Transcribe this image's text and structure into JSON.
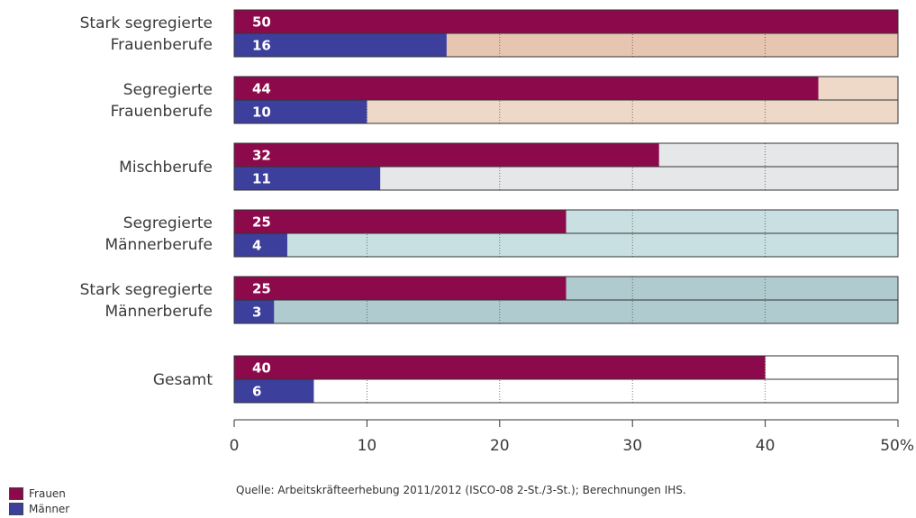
{
  "chart_data": {
    "type": "bar",
    "orientation": "horizontal",
    "categories": [
      [
        "Stark segregierte",
        "Frauenberufe"
      ],
      [
        "Segregierte",
        "Frauenberufe"
      ],
      [
        "Mischberufe"
      ],
      [
        "Segregierte",
        "Männerberufe"
      ],
      [
        "Stark segregierte",
        "Männerberufe"
      ],
      [
        "Gesamt"
      ]
    ],
    "series": [
      {
        "name": "Frauen",
        "color": "#8c0a4b",
        "values": [
          50,
          44,
          32,
          25,
          25,
          40
        ]
      },
      {
        "name": "Männer",
        "color": "#3d3f9c",
        "values": [
          16,
          10,
          11,
          4,
          3,
          6
        ]
      }
    ],
    "background_colors": [
      "#e6c6b1",
      "#eed9c8",
      "#e6e7e9",
      "#c9e0e3",
      "#afcbcf",
      "#ffffff"
    ],
    "xlim": [
      0,
      50
    ],
    "ticks": [
      "0",
      "10",
      "20",
      "30",
      "40",
      "50%"
    ],
    "grid": "vertical dotted",
    "legend_position": "bottom-left"
  },
  "legend": [
    {
      "label": "Frauen",
      "color": "#8c0a4b"
    },
    {
      "label": "Männer",
      "color": "#3d3f9c"
    }
  ],
  "source": "Quelle: Arbeitskräfteerhebung 2011/2012 (ISCO-08 2-St./3-St.); Berechnungen IHS."
}
